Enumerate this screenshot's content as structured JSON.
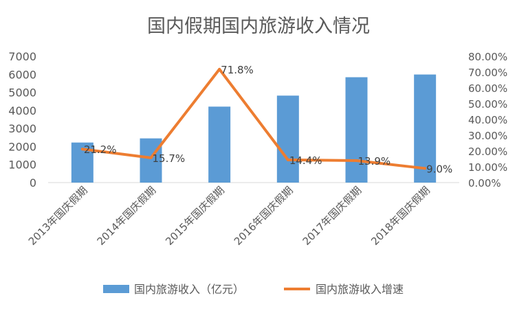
{
  "chart_data": {
    "type": "bar",
    "title": "国内假期国内旅游收入情况",
    "categories": [
      "2013年国庆假期",
      "2014年国庆假期",
      "2015年国庆假期",
      "2016年国庆假期",
      "2017年国庆假期",
      "2018年国庆假期"
    ],
    "series": [
      {
        "name": "国内旅游收入（亿元）",
        "type": "bar",
        "axis": "left",
        "color": "#5B9BD5",
        "values": [
          2220,
          2450,
          4210,
          4820,
          5840,
          5990
        ]
      },
      {
        "name": "国内旅游收入增速",
        "type": "line",
        "axis": "right",
        "color": "#ED7D31",
        "values": [
          21.2,
          15.7,
          71.8,
          14.4,
          13.9,
          9.0
        ],
        "labels": [
          "21.2%",
          "15.7%",
          "71.8%",
          "14.4%",
          "13.9%",
          "9.0%"
        ]
      }
    ],
    "y_left": {
      "ylim": [
        0,
        7000
      ],
      "ticks": [
        "0",
        "1000",
        "2000",
        "3000",
        "4000",
        "5000",
        "6000",
        "7000"
      ]
    },
    "y_right": {
      "ylim": [
        0,
        80
      ],
      "ticks": [
        "0.00%",
        "10.00%",
        "20.00%",
        "30.00%",
        "40.00%",
        "50.00%",
        "60.00%",
        "70.00%",
        "80.00%"
      ]
    },
    "grid": false,
    "legend_position": "bottom"
  }
}
